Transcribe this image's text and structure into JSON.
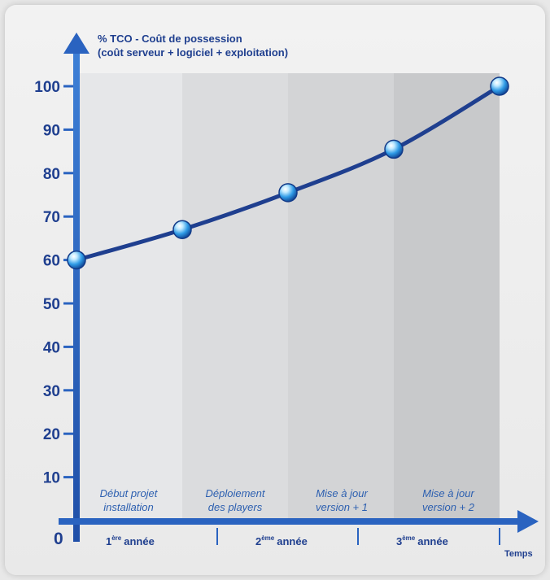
{
  "chart_data": {
    "type": "line",
    "title_line1": "% TCO - Coût de possession",
    "title_line2": "(coût serveur + logiciel + exploitation)",
    "xlabel": "Temps",
    "origin_label": "0",
    "y_ticks": [
      10,
      20,
      30,
      40,
      50,
      60,
      70,
      80,
      90,
      100
    ],
    "ylim": [
      0,
      100
    ],
    "points": [
      60,
      67,
      75.5,
      85.5,
      100
    ],
    "phases": [
      {
        "line1": "Début projet",
        "line2": "installation"
      },
      {
        "line1": "Déploiement",
        "line2": "des players"
      },
      {
        "line1": "Mise à jour",
        "line2": "version + 1"
      },
      {
        "line1": "Mise à jour",
        "line2": "version + 2"
      }
    ],
    "years": [
      {
        "num": "1",
        "sup": "ère",
        "word": "année"
      },
      {
        "num": "2",
        "sup": "ème",
        "word": "année"
      },
      {
        "num": "3",
        "sup": "ème",
        "word": "année"
      }
    ],
    "colors": {
      "axis": "#2a63c0",
      "line": "#1f3f8f",
      "label": "#1f3f8f",
      "band_shades": [
        "#e6e7e9",
        "#dbdcde",
        "#d3d4d6",
        "#c8c9cb"
      ]
    }
  }
}
